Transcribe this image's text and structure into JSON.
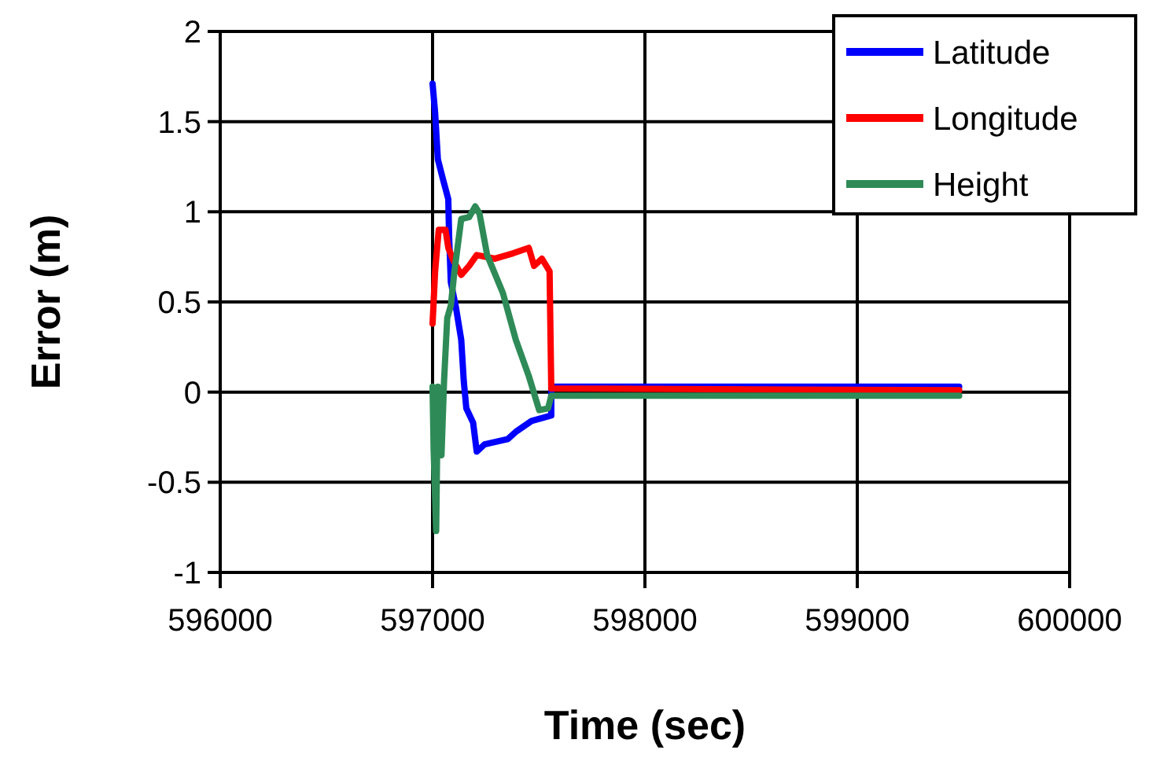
{
  "chart_data": {
    "type": "line",
    "xlabel": "Time (sec)",
    "ylabel": "Error (m)",
    "xlim": [
      596000,
      600000
    ],
    "xticks": [
      596000,
      597000,
      598000,
      599000,
      600000
    ],
    "ylim": [
      -1,
      2
    ],
    "yticks": [
      -1,
      -0.5,
      0,
      0.5,
      1,
      1.5,
      2
    ],
    "grid": true,
    "legend": "top right",
    "line_style": "solid",
    "series": [
      {
        "name": "Latitude",
        "color": "#0000ff",
        "x": [
          597000,
          597012,
          597025,
          597049,
          597074,
          597078,
          597086,
          597110,
          597135,
          597147,
          597159,
          597191,
          597208,
          597245,
          597355,
          597392,
          597466,
          597559,
          597559,
          599480
        ],
        "values": [
          1.71,
          1.55,
          1.29,
          1.18,
          1.07,
          0.86,
          0.61,
          0.47,
          0.29,
          0.06,
          -0.09,
          -0.17,
          -0.33,
          -0.29,
          -0.26,
          -0.22,
          -0.16,
          -0.13,
          0.03,
          0.03
        ]
      },
      {
        "name": "Longitude",
        "color": "#ff0000",
        "x": [
          597000,
          597012,
          597029,
          597061,
          597074,
          597098,
          597135,
          597172,
          597208,
          597294,
          597380,
          597453,
          597478,
          597515,
          597551,
          597559,
          599480
        ],
        "values": [
          0.38,
          0.67,
          0.9,
          0.9,
          0.8,
          0.73,
          0.65,
          0.7,
          0.76,
          0.74,
          0.77,
          0.8,
          0.7,
          0.74,
          0.67,
          0.02,
          0.01
        ]
      },
      {
        "name": "Height",
        "color": "#2e8b57",
        "x": [
          597000,
          597005,
          597017,
          597025,
          597042,
          597054,
          597069,
          597086,
          597103,
          597135,
          597172,
          597201,
          597221,
          597257,
          597331,
          597392,
          597453,
          597502,
          597544,
          597559,
          599480
        ],
        "values": [
          0.03,
          -0.32,
          -0.77,
          0.03,
          -0.35,
          0.06,
          0.41,
          0.48,
          0.67,
          0.96,
          0.97,
          1.03,
          0.99,
          0.76,
          0.55,
          0.29,
          0.09,
          -0.1,
          -0.09,
          -0.02,
          -0.02
        ]
      }
    ]
  }
}
